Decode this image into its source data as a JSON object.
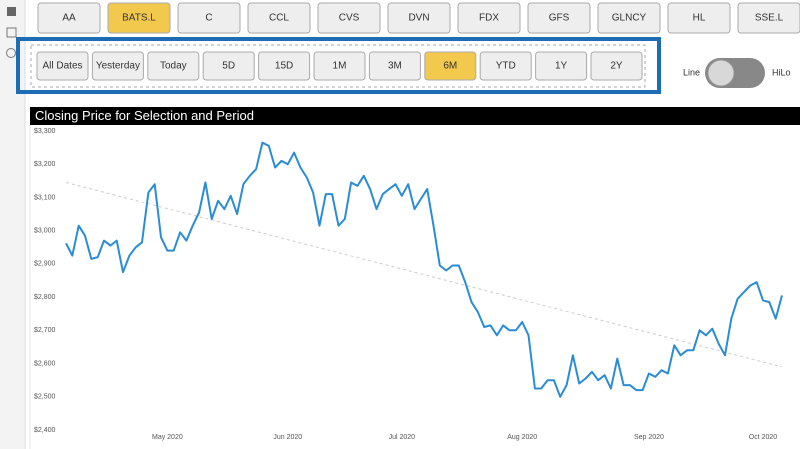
{
  "tickers": {
    "buttons": [
      "AA",
      "BATS.L",
      "C",
      "CCL",
      "CVS",
      "DVN",
      "FDX",
      "GFS",
      "GLNCY",
      "HL",
      "SSE.L"
    ],
    "selected": 1
  },
  "periods": {
    "buttons": [
      "All Dates",
      "Yesterday",
      "Today",
      "5D",
      "15D",
      "1M",
      "3M",
      "6M",
      "YTD",
      "1Y",
      "2Y"
    ],
    "selected": 7
  },
  "toggle": {
    "left": "Line",
    "right": "HiLo"
  },
  "chart_data": {
    "type": "line",
    "title": "Closing Price for Selection and Period",
    "categories": [
      null,
      null,
      null,
      null,
      null,
      null,
      null,
      null,
      null,
      null,
      null,
      null,
      null,
      null,
      null,
      null,
      "May 2020",
      null,
      null,
      null,
      null,
      null,
      null,
      null,
      null,
      null,
      null,
      null,
      null,
      null,
      null,
      null,
      null,
      null,
      null,
      "Jun 2020",
      null,
      null,
      null,
      null,
      null,
      null,
      null,
      null,
      null,
      null,
      null,
      null,
      null,
      null,
      null,
      null,
      null,
      "Jul 2020",
      null,
      null,
      null,
      null,
      null,
      null,
      null,
      null,
      null,
      null,
      null,
      null,
      null,
      null,
      null,
      null,
      null,
      null,
      "Aug 2020",
      null,
      null,
      null,
      null,
      null,
      null,
      null,
      null,
      null,
      null,
      null,
      null,
      null,
      null,
      null,
      null,
      null,
      null,
      null,
      "Sep 2020",
      null,
      null,
      null,
      null,
      null,
      null,
      null,
      null,
      null,
      null,
      null,
      null,
      null,
      null,
      null,
      null,
      null,
      "Oct 2020",
      null,
      null,
      null
    ],
    "values": [
      2962,
      2925,
      3015,
      2985,
      2915,
      2920,
      2970,
      2955,
      2970,
      2875,
      2925,
      2950,
      2965,
      3115,
      3140,
      2980,
      2940,
      2940,
      2995,
      2970,
      3015,
      3055,
      3145,
      3035,
      3090,
      3065,
      3105,
      3050,
      3140,
      3165,
      3185,
      3265,
      3255,
      3190,
      3210,
      3200,
      3235,
      3190,
      3160,
      3115,
      3015,
      3110,
      3110,
      3015,
      3035,
      3145,
      3135,
      3165,
      3125,
      3065,
      3110,
      3125,
      3140,
      3105,
      3140,
      3065,
      3095,
      3125,
      3015,
      2895,
      2880,
      2895,
      2895,
      2845,
      2785,
      2755,
      2710,
      2715,
      2685,
      2715,
      2700,
      2700,
      2725,
      2685,
      2525,
      2525,
      2550,
      2550,
      2500,
      2535,
      2625,
      2540,
      2555,
      2575,
      2550,
      2565,
      2525,
      2615,
      2535,
      2535,
      2520,
      2520,
      2570,
      2560,
      2580,
      2570,
      2655,
      2625,
      2640,
      2640,
      2700,
      2685,
      2705,
      2660,
      2625,
      2735,
      2795,
      2815,
      2835,
      2845,
      2790,
      2785,
      2735,
      2805
    ],
    "color": "#2b8cd6",
    "trend_line": [
      3145,
      2590
    ],
    "ylim": [
      2400,
      3300
    ],
    "yticks": [
      {
        "value": 2400,
        "label": "$2,400"
      },
      {
        "value": 2500,
        "label": "$2,500"
      },
      {
        "value": 2600,
        "label": "$2,600"
      },
      {
        "value": 2700,
        "label": "$2,700"
      },
      {
        "value": 2800,
        "label": "$2,800"
      },
      {
        "value": 2900,
        "label": "$2,900"
      },
      {
        "value": 3000,
        "label": "$3,000"
      },
      {
        "value": 3100,
        "label": "$3,100"
      },
      {
        "value": 3200,
        "label": "$3,200"
      },
      {
        "value": 3300,
        "label": "$3,300"
      }
    ],
    "grid": false
  }
}
